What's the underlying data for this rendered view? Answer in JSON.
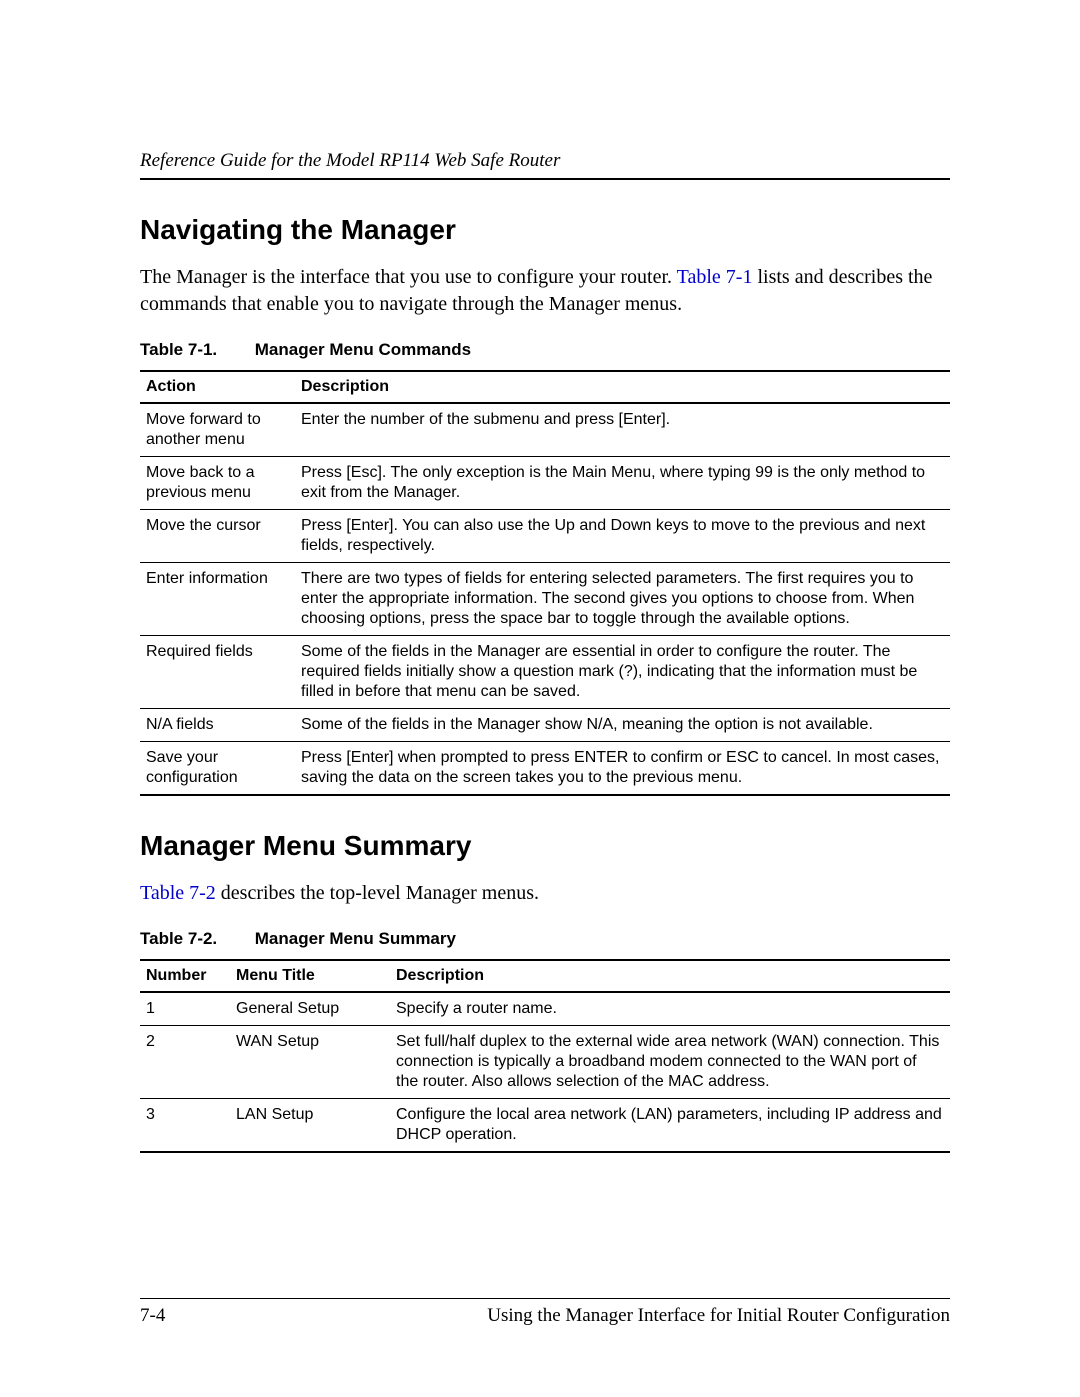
{
  "runningHead": "Reference Guide for the Model RP114 Web Safe Router",
  "section1": {
    "title": "Navigating the Manager",
    "para_pre": "The Manager is the interface that you use to configure your router. ",
    "para_link": "Table 7-1",
    "para_post": " lists and describes the commands that enable you to navigate through the Manager menus."
  },
  "table1": {
    "cap_num": "Table 7-1.",
    "cap_title": "Manager Menu Commands",
    "head_action": "Action",
    "head_desc": "Description",
    "rows": [
      {
        "action": "Move forward to another menu",
        "desc": "Enter the number of the submenu and press [Enter]."
      },
      {
        "action": "Move back to a previous menu",
        "desc": "Press [Esc]. The only exception is the Main Menu, where typing 99 is the only method to exit from the Manager."
      },
      {
        "action": "Move the cursor",
        "desc": "Press [Enter]. You can also use the Up and Down keys to move to the previous and next fields, respectively."
      },
      {
        "action": "Enter information",
        "desc": "There are two types of fields for entering selected parameters. The first requires you to enter the appropriate information. The second gives you options to choose from. When choosing options, press the space bar to toggle through the available options."
      },
      {
        "action": "Required fields",
        "desc": "Some of the fields in the Manager are essential in order to configure the router. The required fields initially show a question mark (?), indicating that the information must be filled in before that menu can be saved."
      },
      {
        "action": "N/A fields",
        "desc": "Some of the fields in the Manager show N/A, meaning the option is not available."
      },
      {
        "action": "Save your configuration",
        "desc": "Press [Enter] when prompted to press ENTER to confirm or ESC to cancel. In most cases, saving the data on the screen takes you to the previous menu."
      }
    ]
  },
  "section2": {
    "title": "Manager Menu Summary",
    "para_link": "Table 7-2",
    "para_post": " describes the top-level Manager menus."
  },
  "table2": {
    "cap_num": "Table 7-2.",
    "cap_title": "Manager Menu Summary",
    "head_num": "Number",
    "head_title": "Menu Title",
    "head_desc": "Description",
    "rows": [
      {
        "num": "1",
        "title": "General Setup",
        "desc": "Specify a router name."
      },
      {
        "num": "2",
        "title": "WAN Setup",
        "desc": "Set full/half duplex to the external wide area network (WAN) connection. This connection is typically a broadband modem connected to the WAN port of the router. Also allows selection of the MAC address."
      },
      {
        "num": "3",
        "title": "LAN Setup",
        "desc": "Configure the local area network (LAN) parameters, including IP address and DHCP operation."
      }
    ]
  },
  "footer": {
    "pageNum": "7-4",
    "chapter": "Using the Manager Interface for Initial Router Configuration"
  }
}
